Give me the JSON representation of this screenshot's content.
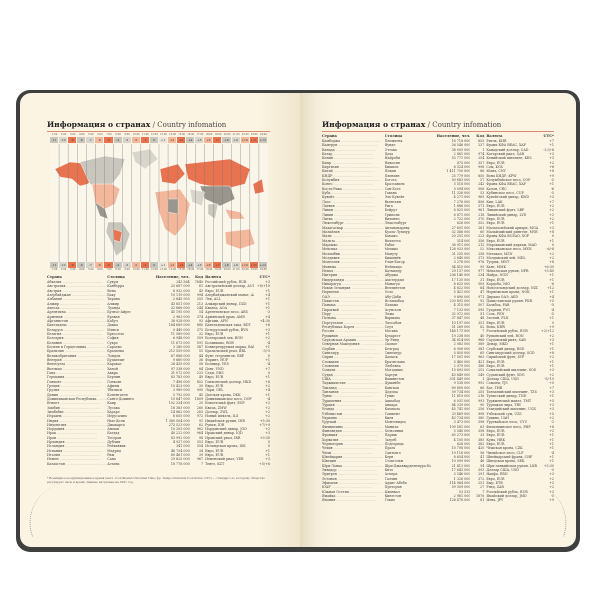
{
  "colors": {
    "cover": "#3f3f3f",
    "page": "#fbf4e2",
    "accent": "#e8734e",
    "peach": "#f3b79b",
    "grey": "#c9c6bd",
    "darkgrey": "#9a968d"
  },
  "left": {
    "title": "Информация о странах",
    "subtitle": "/ Country infomation",
    "tz_times": [
      "1:00",
      "2:00",
      "3:00",
      "4:00",
      "5:00",
      "6:00",
      "7:00",
      "8:00",
      "9:00",
      "10:00",
      "11:00",
      "12:00",
      "13:00",
      "14:00",
      "15:00",
      "16:00",
      "17:00",
      "18:00",
      "19:00",
      "20:00",
      "21:00",
      "22:00",
      "23:00",
      "24:00"
    ],
    "tz_offsets": [
      "-11",
      "-10",
      "-9",
      "-8",
      "-7",
      "-6",
      "-5",
      "-4",
      "-3",
      "-2",
      "-1",
      "0",
      "+1",
      "+2",
      "+3",
      "+4",
      "+5",
      "+6",
      "+7",
      "+8",
      "+9",
      "+10",
      "+11",
      "+12"
    ],
    "headers": [
      "Страна",
      "Столица",
      "Население, чел.",
      "Код",
      "Валюта",
      "UTC*"
    ],
    "rows": [
      [
        "Абхазия",
        "Сухум",
        "243 564",
        "7840",
        "Российский рубль, RUB",
        "+3"
      ],
      [
        "Австралия",
        "Канберра",
        "25 687 000",
        "61",
        "Австралийский доллар, AUD",
        "+8/+10"
      ],
      [
        "Австрия",
        "Вена",
        "8 932 000",
        "43",
        "Евро, EUR",
        "+1"
      ],
      [
        "Азербайджан",
        "Баку",
        "10 119 000",
        "994",
        "Азербайджанский манат, AZN",
        "+4"
      ],
      [
        "Албания",
        "Тирана",
        "2 845 955",
        "355",
        "Лек, ALL",
        "+1"
      ],
      [
        "Алжир",
        "Алжир",
        "43 851 000",
        "213",
        "Алжирский динар, DZD",
        "+1"
      ],
      [
        "Ангола",
        "Луанда",
        "32 866 000",
        "244",
        "Кванза, AOA",
        "+1"
      ],
      [
        "Аргентина",
        "Буэнос-Айрес",
        "45 195 000",
        "54",
        "Аргентинское песо, ARS",
        "-3"
      ],
      [
        "Армения",
        "Ереван",
        "2 963 000",
        "374",
        "Армянский драм, AMD",
        "+4"
      ],
      [
        "Афганистан",
        "Кабул",
        "38 928 000",
        "93",
        "Афгани, AFN",
        "+4:30"
      ],
      [
        "Бангладеш",
        "Дакка",
        "164 689 000",
        "880",
        "Бангладешская така, BDT",
        "+6"
      ],
      [
        "Беларусь",
        "Минск",
        "9 449 000",
        "375",
        "Белорусский рубль, BYN",
        "+3"
      ],
      [
        "Бельгия",
        "Брюссель",
        "11 589 000",
        "32",
        "Евро, EUR",
        "+1"
      ],
      [
        "Болгария",
        "София",
        "6 948 000",
        "359",
        "Болгарский лев, BGN",
        "+2"
      ],
      [
        "Боливия",
        "Сукре",
        "11 673 000",
        "591",
        "Боливиано, BOB",
        "-4"
      ],
      [
        "Босния и Герцеговина",
        "Сараево",
        "3 280 000",
        "387",
        "Конвертируемая марка, BAM",
        "+1"
      ],
      [
        "Бразилия",
        "Бразилиа",
        "212 559 000",
        "55",
        "Бразильский реал, BRL",
        "-3/-5"
      ],
      [
        "Великобритания",
        "Лондон",
        "67 886 000",
        "44",
        "Фунт стерлингов, GBP",
        "0"
      ],
      [
        "Венгрия",
        "Будапешт",
        "9 660 000",
        "36",
        "Форинт, HUF",
        "+1"
      ],
      [
        "Венесуэла",
        "Каракас",
        "28 435 000",
        "58",
        "Боливар, VES",
        "-4"
      ],
      [
        "Вьетнам",
        "Ханой",
        "97 338 000",
        "84",
        "Донг, VND",
        "+7"
      ],
      [
        "Гана",
        "Аккра",
        "31 072 000",
        "233",
        "Седи, GHS",
        "0"
      ],
      [
        "Германия",
        "Берлин",
        "83 783 000",
        "49",
        "Евро, EUR",
        "+1"
      ],
      [
        "Гонконг",
        "Гонконг",
        "7 496 000",
        "852",
        "Гонконгский доллар, HKD",
        "+8"
      ],
      [
        "Греция",
        "Афины",
        "10 423 000",
        "30",
        "Евро, EUR",
        "+2"
      ],
      [
        "Грузия",
        "Тбилиси",
        "3 989 000",
        "995",
        "Лари, GEL",
        "+4"
      ],
      [
        "Дания",
        "Копенгаген",
        "5 792 000",
        "45",
        "Датская крона, DKK",
        "+1"
      ],
      [
        "Доминиканская Республика",
        "Санто-Доминго",
        "10 847 000",
        "1809",
        "Доминиканское песо, DOP",
        "-4"
      ],
      [
        "Египет",
        "Каир",
        "102 334 000",
        "20",
        "Египетский фунт, EGP",
        "+2"
      ],
      [
        "Замбия",
        "Лусака",
        "18 383 000",
        "260",
        "Квача, ZMW",
        "+2"
      ],
      [
        "Зимбабве",
        "Хараре",
        "14 862 000",
        "263",
        "Доллар, ZWL",
        "+2"
      ],
      [
        "Израиль",
        "Иерусалим",
        "8 655 000",
        "972",
        "Новый шекель, ILS",
        "+2"
      ],
      [
        "Индия",
        "Нью-Дели",
        "1 380 004 000",
        "91",
        "Индийская рупия, INR",
        "+5:30"
      ],
      [
        "Индонезия",
        "Джакарта",
        "273 523 000",
        "62",
        "Рупия, IDR",
        "+7/+9"
      ],
      [
        "Иордания",
        "Амман",
        "10 203 000",
        "962",
        "Иорданский динар, JOD",
        "+2"
      ],
      [
        "Ирак",
        "Багдад",
        "40 222 000",
        "964",
        "Иракский динар, IQD",
        "+3"
      ],
      [
        "Иран",
        "Тегеран",
        "83 992 000",
        "98",
        "Иранский риал, IRR",
        "+3:30"
      ],
      [
        "Ирландия",
        "Дублин",
        "4 937 000",
        "353",
        "Евро, EUR",
        "0"
      ],
      [
        "Исландия",
        "Рейкьявик",
        "341 000",
        "354",
        "Исландская крона, ISK",
        "0"
      ],
      [
        "Испания",
        "Мадрид",
        "46 754 000",
        "34",
        "Евро, EUR",
        "+1"
      ],
      [
        "Италия",
        "Рим",
        "60 461 000",
        "39",
        "Евро, EUR",
        "+1"
      ],
      [
        "Йемен",
        "Сана",
        "29 825 000",
        "967",
        "Йеменский риал, YER",
        "+3"
      ],
      [
        "Казахстан",
        "Астана",
        "18 776 000",
        "7",
        "Тенге, KZT",
        "+5/+6"
      ]
    ],
    "footnote": "* Всемирное координированное время (англ. Coordinated Universal Time, фр. Temps Universel Coordonné, UTC) — стандарт, по которому общество регулирует часы и время. Данные актуальны на 2021 год."
  },
  "right": {
    "title": "Информация о странах",
    "subtitle": "/ Country infomation",
    "headers": [
      "Страна",
      "Столица",
      "Население, чел.",
      "Код",
      "Валюта",
      "UTC*"
    ],
    "rows": [
      [
        "Камбоджа",
        "Пномпень",
        "16 718 000",
        "855",
        "Риель, KHR",
        "+7"
      ],
      [
        "Камерун",
        "Яунде",
        "26 546 000",
        "237",
        "Франк КФА BEAC, XAF",
        "+1"
      ],
      [
        "Канада",
        "Оттава",
        "38 005 000",
        "1",
        "Канадский доллар, CAD",
        "-3,5/-8"
      ],
      [
        "Катар",
        "Доха",
        "2 881 000",
        "974",
        "Катарский риал, QAR",
        "+3"
      ],
      [
        "Кения",
        "Найроби",
        "53 771 000",
        "254",
        "Кенийский шиллинг, KES",
        "+3"
      ],
      [
        "Кипр",
        "Никосия",
        "875 000",
        "357",
        "Евро, EUR",
        "+2"
      ],
      [
        "Киргизия",
        "Бишкек",
        "6 524 000",
        "996",
        "Сом, KGS",
        "+6"
      ],
      [
        "Китай",
        "Пекин",
        "1 411 750 000",
        "86",
        "Юань, CNY",
        "+8"
      ],
      [
        "КНДР",
        "Пхеньян",
        "25 779 000",
        "850",
        "Вона КНДР, KPW",
        "+9"
      ],
      [
        "Колумбия",
        "Богота",
        "50 883 000",
        "57",
        "Колумбийское песо, COP",
        "-5"
      ],
      [
        "Конго",
        "Браззавиль",
        "5 518 000",
        "242",
        "Франк КФА BEAC, XAF",
        "+1"
      ],
      [
        "Коста-Рика",
        "Сан-Хосе",
        "5 094 000",
        "506",
        "Колон, CRC",
        "-6"
      ],
      [
        "Куба",
        "Гавана",
        "11 326 000",
        "53",
        "Кубинское песо, CUP",
        "-5"
      ],
      [
        "Кувейт",
        "Эль-Кувейт",
        "4 271 000",
        "965",
        "Кувейтский динар, KWD",
        "+3"
      ],
      [
        "Лаос",
        "Вьентьян",
        "7 276 000",
        "856",
        "Кип, LAK",
        "+7"
      ],
      [
        "Латвия",
        "Рига",
        "1 886 000",
        "371",
        "Евро, EUR",
        "+2"
      ],
      [
        "Ливан",
        "Бейрут",
        "6 825 000",
        "961",
        "Ливанский фунт, LBP",
        "+2"
      ],
      [
        "Ливия",
        "Триполи",
        "6 871 000",
        "218",
        "Ливийский динар, LYD",
        "+2"
      ],
      [
        "Литва",
        "Вильнюс",
        "2 722 000",
        "370",
        "Евро, EUR",
        "+2"
      ],
      [
        "Люксембург",
        "Люксембург",
        "626 000",
        "352",
        "Евро, EUR",
        "+1"
      ],
      [
        "Мадагаскар",
        "Антананариву",
        "27 691 000",
        "261",
        "Малагасийский ариари, MGA",
        "+3"
      ],
      [
        "Малайзия",
        "Куала-Лумпур",
        "32 366 000",
        "60",
        "Малайзийский ринггит, MYR",
        "+8"
      ],
      [
        "Мали",
        "Бамако",
        "20 251 000",
        "223",
        "Франк КФА BCEAO, XOF",
        "0"
      ],
      [
        "Мальта",
        "Валлетта",
        "514 000",
        "356",
        "Евро, EUR",
        "+1"
      ],
      [
        "Марокко",
        "Рабат",
        "36 911 000",
        "212",
        "Марокканский дирхам, MAD",
        "0"
      ],
      [
        "Мексика",
        "Мехико",
        "128 933 000",
        "52",
        "Мексиканское песо, MXN",
        "-6/-8"
      ],
      [
        "Мозамбик",
        "Мапуту",
        "31 255 000",
        "258",
        "Метикал, MZN",
        "+2"
      ],
      [
        "Молдавия",
        "Кишинёв",
        "2 640 000",
        "373",
        "Молдавский лей, MDL",
        "+2"
      ],
      [
        "Монголия",
        "Улан-Батор",
        "3 278 000",
        "976",
        "Тугрик, MNT",
        "+8"
      ],
      [
        "Мьянма",
        "Нейпьидо",
        "54 410 000",
        "95",
        "Кьят, MMK",
        "+6:30"
      ],
      [
        "Непал",
        "Катманду",
        "29 137 000",
        "977",
        "Непальская рупия, NPR",
        "+5:45"
      ],
      [
        "Нигерия",
        "Абуджа",
        "206 140 000",
        "234",
        "Найра, NGN",
        "+1"
      ],
      [
        "Нидерланды",
        "Амстердам",
        "17 135 000",
        "31",
        "Евро, EUR",
        "+1"
      ],
      [
        "Никарагуа",
        "Манагуа",
        "6 625 000",
        "505",
        "Кордоба, NIO",
        "-6"
      ],
      [
        "Новая Зеландия",
        "Веллингтон",
        "4 822 000",
        "64",
        "Новозеландский доллар, NZD",
        "+12"
      ],
      [
        "Норвегия",
        "Осло",
        "5 421 000",
        "47",
        "Норвежская крона, NOK",
        "+1"
      ],
      [
        "ОАЭ",
        "Абу-Даби",
        "9 890 000",
        "971",
        "Дирхам ОАЭ, AED",
        "+4"
      ],
      [
        "Пакистан",
        "Исламабад",
        "220 892 000",
        "92",
        "Пакистанская рупия, PKR",
        "+5"
      ],
      [
        "Панама",
        "Панама",
        "4 315 000",
        "507",
        "Бальбоа, PAB",
        "-5"
      ],
      [
        "Парагвай",
        "Асунсьон",
        "7 133 000",
        "595",
        "Гуарани, PYG",
        "-4"
      ],
      [
        "Перу",
        "Лима",
        "32 972 000",
        "51",
        "Соль, PEN",
        "-5"
      ],
      [
        "Польша",
        "Варшава",
        "37 847 000",
        "48",
        "Злотый, PLN",
        "+1"
      ],
      [
        "Португалия",
        "Лиссабон",
        "10 197 000",
        "351",
        "Евро, EUR",
        "0"
      ],
      [
        "Республика Корея",
        "Сеул",
        "51 269 000",
        "82",
        "Вона, KRW",
        "+9"
      ],
      [
        "Россия",
        "Москва",
        "146 171 000",
        "7",
        "Российский рубль, RUB",
        "+2/+12"
      ],
      [
        "Румыния",
        "Бухарест",
        "19 238 000",
        "40",
        "Румынский лей, RON",
        "+2"
      ],
      [
        "Саудовская Аравия",
        "Эр-Рияд",
        "34 814 000",
        "966",
        "Саудовский риял, SAR",
        "+3"
      ],
      [
        "Северная Македония",
        "Скопье",
        "2 083 000",
        "389",
        "Денар, MKD",
        "+1"
      ],
      [
        "Сербия",
        "Белград",
        "6 908 000",
        "381",
        "Сербский динар, RSD",
        "+1"
      ],
      [
        "Сингапур",
        "Сингапур",
        "5 850 000",
        "65",
        "Сингапурский доллар, SGD",
        "+8"
      ],
      [
        "Сирия",
        "Дамаск",
        "17 501 000",
        "963",
        "Сирийский фунт, SYP",
        "+2"
      ],
      [
        "Словакия",
        "Братислава",
        "5 460 000",
        "421",
        "Евро, EUR",
        "+1"
      ],
      [
        "Словения",
        "Любляна",
        "2 079 000",
        "386",
        "Евро, EUR",
        "+1"
      ],
      [
        "Сомали",
        "Могадишо",
        "15 893 000",
        "252",
        "Сомалийский шиллинг, SOS",
        "+3"
      ],
      [
        "Судан",
        "Хартум",
        "43 849 000",
        "249",
        "Суданский фунт, SDG",
        "+2"
      ],
      [
        "США",
        "Вашингтон",
        "331 449 000",
        "1",
        "Доллар США, USD",
        "-5/-10"
      ],
      [
        "Таджикистан",
        "Душанбе",
        "9 538 000",
        "992",
        "Сомони, TJS",
        "+5"
      ],
      [
        "Таиланд",
        "Бангкок",
        "69 800 000",
        "66",
        "Бат, THB",
        "+7"
      ],
      [
        "Танзания",
        "Додома",
        "59 734 000",
        "255",
        "Танзанийский шиллинг, TZS",
        "+3"
      ],
      [
        "Тунис",
        "Тунис",
        "11 819 000",
        "216",
        "Тунисский динар, TND",
        "+1"
      ],
      [
        "Туркмения",
        "Ашхабад",
        "6 031 000",
        "993",
        "Туркменский манат, TMT",
        "+5"
      ],
      [
        "Турция",
        "Анкара",
        "84 339 000",
        "90",
        "Турецкая лира, TRY",
        "+3"
      ],
      [
        "Уганда",
        "Кампала",
        "45 741 000",
        "256",
        "Угандийский шиллинг, UGX",
        "+3"
      ],
      [
        "Узбекистан",
        "Ташкент",
        "33 469 000",
        "998",
        "Узбекский сум, UZS",
        "+5"
      ],
      [
        "Украина",
        "Киев",
        "43 734 000",
        "380",
        "Гривна, UAH",
        "+2"
      ],
      [
        "Уругвай",
        "Монтевидео",
        "3 473 000",
        "598",
        "Уругвайское песо, UYU",
        "-3"
      ],
      [
        "Филиппины",
        "Манила",
        "109 581 000",
        "63",
        "Филиппинское песо, PHP",
        "+8"
      ],
      [
        "Финляндия",
        "Хельсинки",
        "5 540 000",
        "358",
        "Евро, EUR",
        "+2"
      ],
      [
        "Франция",
        "Париж",
        "65 273 000",
        "33",
        "Евро, EUR",
        "+1"
      ],
      [
        "Хорватия",
        "Загреб",
        "4 105 000",
        "385",
        "Куна, HRK",
        "+1"
      ],
      [
        "Черногория",
        "Подгорица",
        "628 000",
        "382",
        "Евро, EUR",
        "+1"
      ],
      [
        "Чехия",
        "Прага",
        "10 708 000",
        "420",
        "Чешская крона, CZK",
        "+1"
      ],
      [
        "Чили",
        "Сантьяго",
        "19 116 000",
        "56",
        "Чилийское песо, CLP",
        "-4"
      ],
      [
        "Швейцария",
        "Берн",
        "8 654 000",
        "41",
        "Швейцарский франк, CHF",
        "+1"
      ],
      [
        "Швеция",
        "Стокгольм",
        "10 099 000",
        "46",
        "Шведская крона, SEK",
        "+1"
      ],
      [
        "Шри-Ланка",
        "Шри-Джаяварденепура-Котте",
        "21 413 000",
        "94",
        "Шри-ланкийская рупия, LKR",
        "+5:30"
      ],
      [
        "Эквадор",
        "Кито",
        "17 643 000",
        "593",
        "Доллар США, USD",
        "-5"
      ],
      [
        "Эритрея",
        "Асмэра",
        "3 546 000",
        "291",
        "Накфа, ERN",
        "+3"
      ],
      [
        "Эстония",
        "Таллин",
        "1 326 000",
        "372",
        "Евро, EUR",
        "+2"
      ],
      [
        "Эфиопия",
        "Аддис-Абеба",
        "114 964 000",
        "251",
        "Быр, ETB",
        "+3"
      ],
      [
        "ЮАР",
        "Претория",
        "59 309 000",
        "27",
        "Рэнд, ZAR",
        "+2"
      ],
      [
        "Южная Осетия",
        "Цхинвал",
        "53 532",
        "7",
        "Российский рубль, RUB",
        "+3"
      ],
      [
        "Ямайка",
        "Кингстон",
        "2 961 000",
        "1876",
        "Ямайский доллар, JMD",
        "-5"
      ],
      [
        "Япония",
        "Токио",
        "126 476 000",
        "81",
        "Иена, JPY",
        "+9"
      ]
    ]
  }
}
